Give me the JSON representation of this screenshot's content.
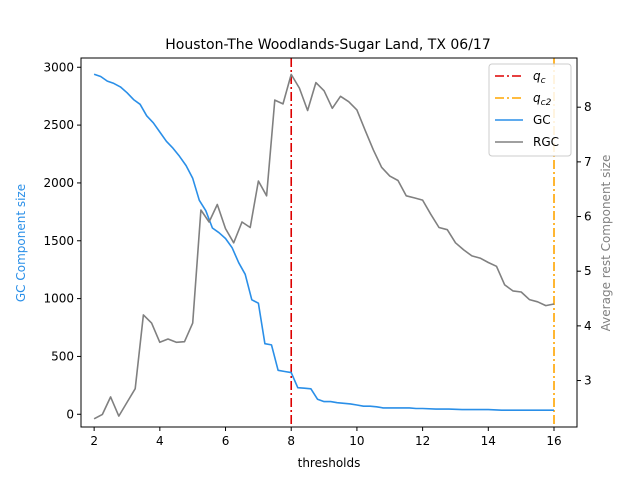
{
  "chart_data": {
    "type": "line",
    "title": "Houston-The Woodlands-Sugar Land, TX 06/17",
    "xlabel": "thresholds",
    "ylabel_left": "GC Component size",
    "ylabel_right": "Average rest Component size",
    "xlim": [
      1.6,
      16.7
    ],
    "ylim_left": [
      -110,
      3080
    ],
    "ylim_right": [
      2.15,
      8.9
    ],
    "x_ticks": [
      2,
      4,
      6,
      8,
      10,
      12,
      14,
      16
    ],
    "y_ticks_left": [
      0,
      500,
      1000,
      1500,
      2000,
      2500,
      3000
    ],
    "y_ticks_right": [
      3,
      4,
      5,
      6,
      7,
      8
    ],
    "legend_position": "top-right",
    "colors": {
      "qc": "#dd0000",
      "qc2": "#ffa500",
      "gc": "#2a8fe8",
      "rgc": "#808080",
      "left_axis_label": "#2a8fe8",
      "right_axis_label": "#808080"
    },
    "series": [
      {
        "name": "$q_c$",
        "display": "q",
        "subscript": "c",
        "style": "dashdot",
        "x_constant": 8
      },
      {
        "name": "$q_{c2}$",
        "display": "q",
        "subscript": "c2",
        "style": "dashdot",
        "x_constant": 16
      },
      {
        "name": "GC",
        "axis": "left",
        "x": [
          2.0,
          2.2,
          2.4,
          2.6,
          2.8,
          3.0,
          3.2,
          3.4,
          3.6,
          3.8,
          4.0,
          4.2,
          4.4,
          4.6,
          4.8,
          5.0,
          5.2,
          5.4,
          5.6,
          5.8,
          6.0,
          6.2,
          6.4,
          6.6,
          6.8,
          7.0,
          7.2,
          7.4,
          7.6,
          7.8,
          8.0,
          8.2,
          8.4,
          8.6,
          8.8,
          9.0,
          9.2,
          9.4,
          9.6,
          9.8,
          10.0,
          10.2,
          10.4,
          10.6,
          10.8,
          11.0,
          11.2,
          11.4,
          11.6,
          11.8,
          12.0,
          12.4,
          12.8,
          13.2,
          13.6,
          14.0,
          14.4,
          14.8,
          15.2,
          15.6,
          16.0
        ],
        "y": [
          2940,
          2920,
          2880,
          2860,
          2830,
          2780,
          2720,
          2680,
          2580,
          2520,
          2440,
          2360,
          2300,
          2230,
          2150,
          2040,
          1850,
          1760,
          1610,
          1570,
          1520,
          1440,
          1310,
          1210,
          990,
          960,
          610,
          600,
          380,
          370,
          360,
          230,
          225,
          220,
          130,
          110,
          110,
          100,
          95,
          90,
          80,
          70,
          70,
          65,
          55,
          55,
          55,
          55,
          55,
          50,
          50,
          45,
          45,
          40,
          40,
          40,
          35,
          35,
          35,
          35,
          35
        ]
      },
      {
        "name": "RGC",
        "axis": "right",
        "x": [
          2.0,
          2.25,
          2.5,
          2.75,
          3.0,
          3.25,
          3.5,
          3.75,
          4.0,
          4.25,
          4.5,
          4.75,
          5.0,
          5.25,
          5.5,
          5.75,
          6.0,
          6.25,
          6.5,
          6.75,
          7.0,
          7.25,
          7.5,
          7.75,
          8.0,
          8.25,
          8.5,
          8.75,
          9.0,
          9.25,
          9.5,
          9.75,
          10.0,
          10.25,
          10.5,
          10.75,
          11.0,
          11.25,
          11.5,
          11.75,
          12.0,
          12.25,
          12.5,
          12.75,
          13.0,
          13.25,
          13.5,
          13.75,
          14.0,
          14.25,
          14.5,
          14.75,
          15.0,
          15.25,
          15.5,
          15.75,
          16.0
        ],
        "y": [
          2.3,
          2.38,
          2.7,
          2.35,
          2.6,
          2.85,
          4.2,
          4.05,
          3.7,
          3.76,
          3.7,
          3.71,
          4.05,
          6.12,
          5.9,
          6.22,
          5.78,
          5.52,
          5.9,
          5.8,
          6.65,
          6.38,
          8.13,
          8.06,
          8.6,
          8.35,
          7.94,
          8.45,
          8.3,
          7.98,
          8.2,
          8.1,
          7.95,
          7.58,
          7.22,
          6.9,
          6.74,
          6.66,
          6.38,
          6.34,
          6.3,
          6.04,
          5.8,
          5.76,
          5.52,
          5.39,
          5.28,
          5.24,
          5.16,
          5.09,
          4.75,
          4.64,
          4.62,
          4.48,
          4.44,
          4.37,
          4.4
        ]
      }
    ]
  }
}
